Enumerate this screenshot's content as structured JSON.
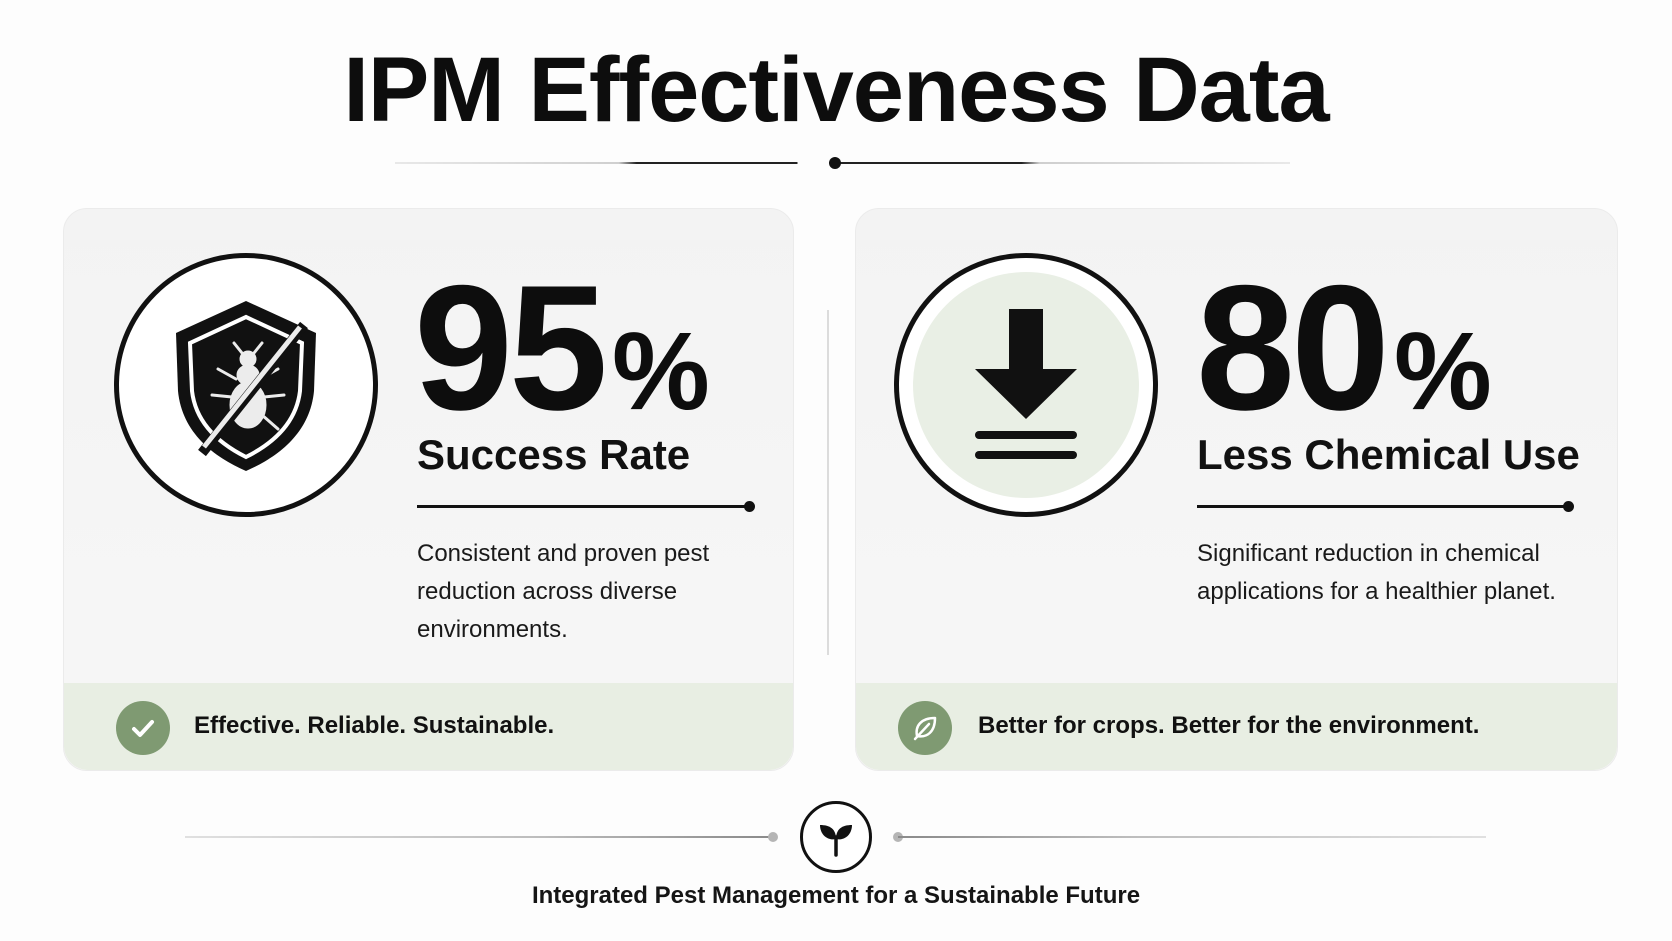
{
  "title": "IPM Effectiveness Data",
  "cards": [
    {
      "icon": "shield-no-bug-icon",
      "value": "95",
      "unit": "%",
      "label": "Success Rate",
      "description": "Consistent and proven pest reduction across diverse environments.",
      "strip_icon": "check-icon",
      "strip_text": "Effective. Reliable. Sustainable."
    },
    {
      "icon": "download-arrow-icon",
      "value": "80",
      "unit": "%",
      "label": "Less Chemical Use",
      "description": "Significant reduction in chemical applications for a healthier planet.",
      "strip_icon": "leaf-icon",
      "strip_text": "Better for crops. Better for the environment."
    }
  ],
  "footer": {
    "icon": "sprout-icon",
    "tagline": "Integrated Pest Management for a Sustainable Future"
  },
  "colors": {
    "accent_green": "#7f9a72",
    "strip_bg": "#e8eee3",
    "text": "#111111"
  }
}
